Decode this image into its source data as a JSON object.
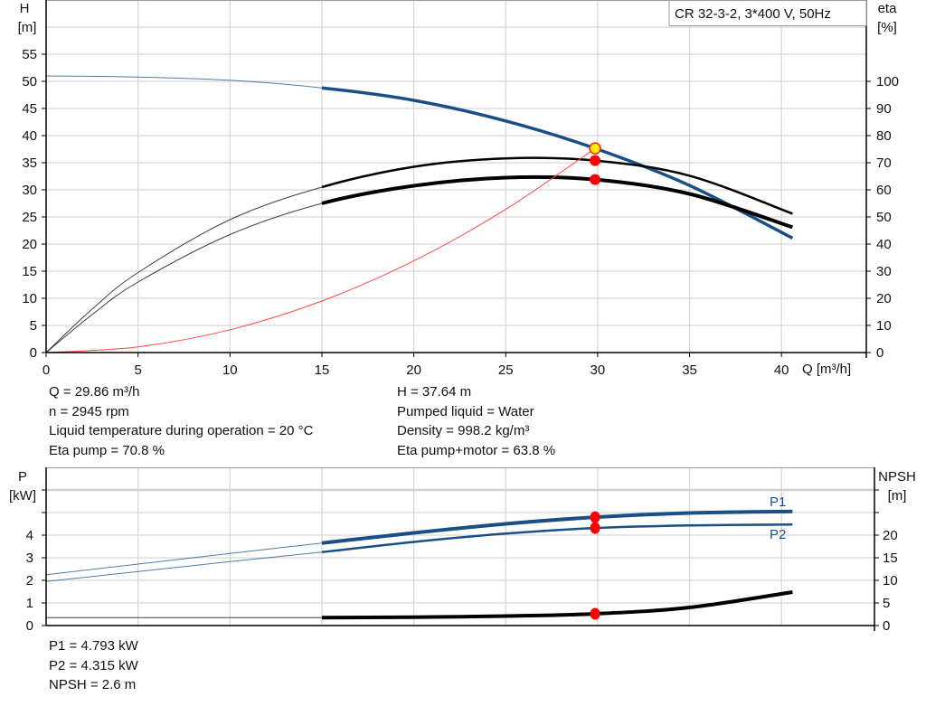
{
  "chart_data": [
    {
      "type": "line",
      "title": "CR 32-3-2, 3*400 V, 50Hz",
      "xlabel": "Q [m³/h]",
      "ylabel_left": [
        "H",
        "[m]"
      ],
      "ylabel_right": [
        "eta",
        "[%]"
      ],
      "xlim": [
        0,
        44.6
      ],
      "ylim_left": [
        0,
        65
      ],
      "ylim_right": [
        0,
        130
      ],
      "xticks": [
        "0",
        "5",
        "10",
        "15",
        "20",
        "25",
        "30",
        "35",
        "40"
      ],
      "yticks_left": [
        "0",
        "5",
        "10",
        "15",
        "20",
        "25",
        "30",
        "35",
        "40",
        "45",
        "50",
        "55"
      ],
      "yticks_right": [
        "0",
        "10",
        "20",
        "30",
        "40",
        "50",
        "60",
        "70",
        "80",
        "90",
        "100"
      ],
      "grid": true,
      "series": [
        {
          "axis": "left",
          "color": "#1a4f86",
          "x": [
            0,
            5,
            10,
            15,
            20,
            25,
            29.86,
            35,
            40.6
          ],
          "y": [
            51,
            50.8,
            50.2,
            48.8,
            46.5,
            42.7,
            37.64,
            30.8,
            21.1
          ]
        },
        {
          "axis": "right",
          "color": "#000000",
          "x": [
            0,
            2.5,
            5,
            10,
            15,
            20,
            25,
            29.86,
            35,
            40.6
          ],
          "y": [
            0,
            16,
            29.5,
            49,
            61,
            68.5,
            71.6,
            70.8,
            65.2,
            51.2
          ]
        },
        {
          "axis": "right",
          "color": "#000000",
          "x": [
            0,
            2.5,
            5,
            10,
            15,
            20,
            25,
            29.86,
            35,
            40.6
          ],
          "y": [
            0,
            14,
            26,
            43.5,
            55,
            61.5,
            64.5,
            63.8,
            58.5,
            46.2
          ]
        },
        {
          "axis": "left",
          "color": "#ff4a4a",
          "x": [
            0,
            5,
            10,
            15,
            20,
            25,
            29.86
          ],
          "y": [
            0,
            1.05,
            4.2,
            9.5,
            16.9,
            26.4,
            37.64
          ]
        }
      ],
      "operating_points": [
        {
          "axis": "left",
          "x": 29.86,
          "y": 37.64,
          "fill": "#ffee00"
        },
        {
          "axis": "right",
          "x": 29.86,
          "y": 70.8,
          "fill": "#ff0000"
        },
        {
          "axis": "right",
          "x": 29.86,
          "y": 63.8,
          "fill": "#ff0000"
        }
      ]
    },
    {
      "type": "line",
      "xlim": [
        0,
        44.6
      ],
      "ylabel_left": [
        "P",
        "[kW]"
      ],
      "ylabel_right": [
        "NPSH",
        "[m]"
      ],
      "ylim_left": [
        0,
        7
      ],
      "ylim_right": [
        0,
        35
      ],
      "yticks_left": [
        "0",
        "1",
        "2",
        "3",
        "4"
      ],
      "yticks_right": [
        "0",
        "5",
        "10",
        "15",
        "20"
      ],
      "grid": true,
      "series": [
        {
          "name": "P1",
          "axis": "left",
          "color": "#1a4f86",
          "x": [
            0,
            5,
            10,
            15,
            20,
            25,
            29.86,
            35,
            40.6
          ],
          "y": [
            2.25,
            2.72,
            3.19,
            3.65,
            4.1,
            4.5,
            4.793,
            4.98,
            5.05
          ]
        },
        {
          "name": "P2",
          "axis": "left",
          "color": "#1a4f86",
          "x": [
            0,
            5,
            10,
            15,
            20,
            25,
            29.86,
            35,
            40.6
          ],
          "y": [
            1.95,
            2.39,
            2.83,
            3.25,
            3.7,
            4.07,
            4.315,
            4.43,
            4.47
          ]
        },
        {
          "axis": "right",
          "color": "#000000",
          "x": [
            0,
            5,
            10,
            15,
            20,
            25,
            29.86,
            35,
            40.6
          ],
          "y": [
            1.75,
            1.75,
            1.75,
            1.75,
            1.85,
            2.1,
            2.6,
            4.0,
            7.4
          ]
        }
      ],
      "operating_points": [
        {
          "axis": "left",
          "x": 29.86,
          "y": 4.793,
          "fill": "#ff0000"
        },
        {
          "axis": "left",
          "x": 29.86,
          "y": 4.315,
          "fill": "#ff0000"
        },
        {
          "axis": "right",
          "x": 29.86,
          "y": 2.6,
          "fill": "#ff0000"
        }
      ]
    }
  ],
  "info_top": {
    "left": [
      "Q = 29.86 m³/h",
      "n = 2945 rpm",
      "Liquid temperature during operation = 20 °C",
      "Eta pump = 70.8 %"
    ],
    "right": [
      "H = 37.64 m",
      "Pumped liquid = Water",
      "Density = 998.2 kg/m³",
      "Eta pump+motor = 63.8 %"
    ]
  },
  "info_bottom": [
    "P1 = 4.793 kW",
    "P2 = 4.315 kW",
    "NPSH = 2.6 m"
  ]
}
